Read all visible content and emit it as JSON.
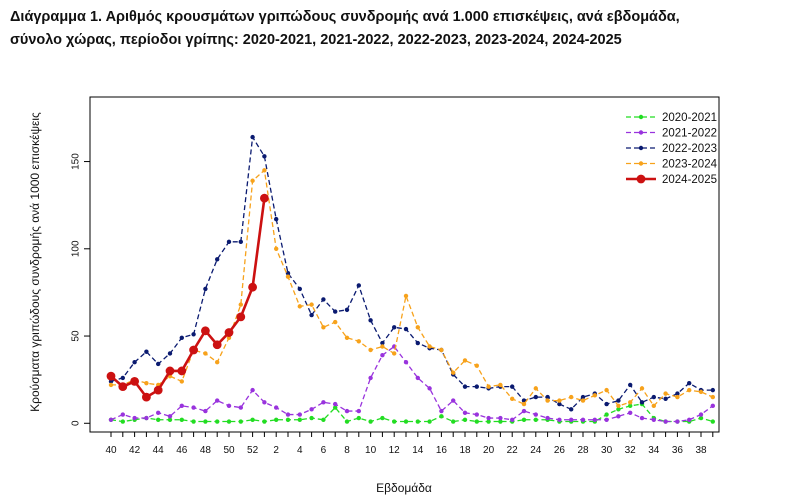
{
  "title_line1": "Διάγραμμα 1. Αριθμός κρουσμάτων γριπώδους συνδρομής ανά 1.000 επισκέψεις, ανά εβδομάδα,",
  "title_line2": "σύνολο χώρας, περίοδοι γρίπης: 2020-2021, 2021-2022, 2022-2023, 2023-2024, 2024-2025",
  "chart_data": {
    "type": "line",
    "xlabel": "Εβδομάδα",
    "ylabel": "Κρούσματα γριπώδους συνδρομής ανά 1000 επισκέψεις",
    "ylim": [
      -5,
      187
    ],
    "yticks": [
      0,
      50,
      100,
      150
    ],
    "x_tick_labels": [
      "40",
      "42",
      "44",
      "46",
      "48",
      "50",
      "52",
      "2",
      "4",
      "6",
      "8",
      "10",
      "12",
      "14",
      "16",
      "18",
      "20",
      "22",
      "24",
      "26",
      "28",
      "30",
      "32",
      "34",
      "36",
      "38"
    ],
    "week_count": 52,
    "legend_position": "top-right",
    "series": [
      {
        "name": "2020-2021",
        "color": "#22dd22",
        "style": "dashed-dot",
        "values": [
          2,
          1,
          2,
          3,
          2,
          2,
          2,
          1,
          1,
          1,
          1,
          1,
          2,
          1,
          2,
          2,
          2,
          3,
          2,
          9,
          1,
          3,
          1,
          3,
          1,
          1,
          1,
          1,
          4,
          1,
          2,
          1,
          1,
          1,
          1,
          2,
          2,
          2,
          1,
          1,
          1,
          1,
          5,
          8,
          10,
          11,
          3,
          1,
          1,
          1,
          3,
          1
        ]
      },
      {
        "name": "2021-2022",
        "color": "#9933dd",
        "style": "dashed-dot",
        "values": [
          2,
          5,
          3,
          3,
          6,
          4,
          10,
          9,
          7,
          13,
          10,
          9,
          19,
          12,
          9,
          5,
          5,
          8,
          12,
          11,
          7,
          7,
          26,
          39,
          44,
          35,
          26,
          20,
          7,
          13,
          6,
          5,
          3,
          3,
          2,
          7,
          5,
          3,
          2,
          2,
          2,
          2,
          2,
          4,
          6,
          3,
          2,
          1,
          1,
          2,
          5,
          10
        ]
      },
      {
        "name": "2022-2023",
        "color": "#0a1a70",
        "style": "dashed-dot",
        "values": [
          24,
          26,
          35,
          41,
          34,
          40,
          49,
          51,
          77,
          94,
          104,
          104,
          164,
          153,
          117,
          86,
          77,
          62,
          71,
          64,
          65,
          79,
          59,
          46,
          55,
          54,
          46,
          43,
          42,
          28,
          21,
          21,
          20,
          21,
          21,
          13,
          15,
          15,
          11,
          8,
          15,
          17,
          11,
          13,
          22,
          12,
          15,
          14,
          17,
          23,
          19,
          19
        ]
      },
      {
        "name": "2023-2024",
        "color": "#f7a21b",
        "style": "dashed-dot",
        "values": [
          22,
          22,
          25,
          23,
          22,
          27,
          24,
          42,
          40,
          35,
          49,
          68,
          139,
          145,
          100,
          84,
          67,
          68,
          55,
          58,
          49,
          47,
          42,
          44,
          40,
          73,
          55,
          44,
          42,
          29,
          36,
          33,
          21,
          22,
          14,
          11,
          20,
          13,
          13,
          15,
          13,
          16,
          19,
          10,
          12,
          20,
          10,
          17,
          15,
          19,
          18,
          15
        ]
      },
      {
        "name": "2024-2025",
        "color": "#cc1111",
        "style": "solid-bold",
        "values": [
          27,
          21,
          24,
          15,
          19,
          30,
          30,
          42,
          53,
          45,
          52,
          61,
          78,
          129
        ]
      }
    ]
  }
}
